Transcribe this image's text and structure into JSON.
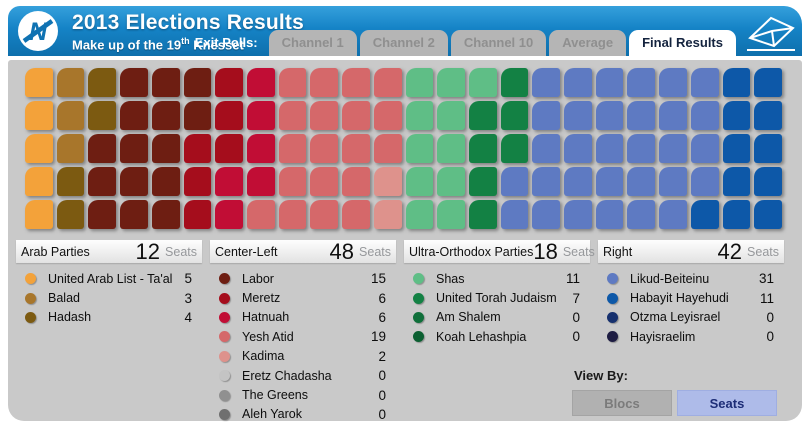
{
  "header": {
    "title": "2013 Elections Results",
    "subtitle_pre": "Make up of the 19",
    "subtitle_sup": "th",
    "subtitle_post": " Knesset",
    "exit_polls_label": "Exit Polls:",
    "tabs": [
      {
        "label": "Channel 1",
        "active": false
      },
      {
        "label": "Channel 2",
        "active": false
      },
      {
        "label": "Channel 10",
        "active": false
      },
      {
        "label": "Average",
        "active": false
      },
      {
        "label": "Final Results",
        "active": true
      }
    ],
    "icons": [
      "news-circle-logo",
      "envelope-icon"
    ]
  },
  "colors": {
    "header_blue": "#1583C6",
    "panel_gray": "#C9C9C9",
    "active_tab_text": "#14233E",
    "seats_button_bg": "#AEBBE9"
  },
  "seat_grid": {
    "rows": 5,
    "columns": 24,
    "total_seats": 120,
    "fill": "column-major-top-to-bottom"
  },
  "blocs": [
    {
      "title": "Arab Parties",
      "total": "12",
      "seats_label": "Seats",
      "parties": [
        {
          "name": "United Arab List - Ta'al",
          "seats": 5,
          "color": "#F3A23A"
        },
        {
          "name": "Balad",
          "seats": 3,
          "color": "#A8762B"
        },
        {
          "name": "Hadash",
          "seats": 4,
          "color": "#7C5A11"
        }
      ]
    },
    {
      "title": "Center-Left",
      "total": "48",
      "seats_label": "Seats",
      "parties": [
        {
          "name": "Labor",
          "seats": 15,
          "color": "#6E1E12"
        },
        {
          "name": "Meretz",
          "seats": 6,
          "color": "#A50D1C"
        },
        {
          "name": "Hatnuah",
          "seats": 6,
          "color": "#C10D35"
        },
        {
          "name": "Yesh Atid",
          "seats": 19,
          "color": "#D5686A"
        },
        {
          "name": "Kadima",
          "seats": 2,
          "color": "#DE928C"
        },
        {
          "name": "Eretz Chadasha",
          "seats": 0,
          "color": "#C4C4C4"
        },
        {
          "name": "The Greens",
          "seats": 0,
          "color": "#909090"
        },
        {
          "name": "Aleh Yarok",
          "seats": 0,
          "color": "#6F6F6F"
        }
      ]
    },
    {
      "title": "Ultra-Orthodox Parties",
      "total": "18",
      "seats_label": "Seats",
      "parties": [
        {
          "name": "Shas",
          "seats": 11,
          "color": "#5FBE86"
        },
        {
          "name": "United Torah Judaism",
          "seats": 7,
          "color": "#138144"
        },
        {
          "name": "Am Shalem",
          "seats": 0,
          "color": "#0F6F3A"
        },
        {
          "name": "Koah Lehashpia",
          "seats": 0,
          "color": "#0B5F31"
        }
      ]
    },
    {
      "title": "Right",
      "total": "42",
      "seats_label": "Seats",
      "parties": [
        {
          "name": "Likud-Beiteinu",
          "seats": 31,
          "color": "#5E7AC2"
        },
        {
          "name": "Habayit Hayehudi",
          "seats": 11,
          "color": "#0D58A8"
        },
        {
          "name": "Otzma Leyisrael",
          "seats": 0,
          "color": "#16306E"
        },
        {
          "name": "Hayisraelim",
          "seats": 0,
          "color": "#1D1C42"
        }
      ]
    }
  ],
  "view_by": {
    "label": "View By:",
    "buttons": [
      {
        "label": "Blocs",
        "active": false
      },
      {
        "label": "Seats",
        "active": true
      }
    ]
  },
  "chart_data": {
    "type": "bar",
    "title": "2013 Elections Results - Make up of the 19th Knesset",
    "categories": [
      "United Arab List - Ta'al",
      "Balad",
      "Hadash",
      "Labor",
      "Meretz",
      "Hatnuah",
      "Yesh Atid",
      "Kadima",
      "Eretz Chadasha",
      "The Greens",
      "Aleh Yarok",
      "Shas",
      "United Torah Judaism",
      "Am Shalem",
      "Koah Lehashpia",
      "Likud-Beiteinu",
      "Habayit Hayehudi",
      "Otzma Leyisrael",
      "Hayisraelim"
    ],
    "values": [
      5,
      3,
      4,
      15,
      6,
      6,
      19,
      2,
      0,
      0,
      0,
      11,
      7,
      0,
      0,
      31,
      11,
      0,
      0
    ],
    "groups": [
      {
        "name": "Arab Parties",
        "total": 12
      },
      {
        "name": "Center-Left",
        "total": 48
      },
      {
        "name": "Ultra-Orthodox Parties",
        "total": 18
      },
      {
        "name": "Right",
        "total": 42
      }
    ],
    "total_seats": 120,
    "seat_layout": "5 rows x 24 columns, seats filled column-major, left to right"
  }
}
